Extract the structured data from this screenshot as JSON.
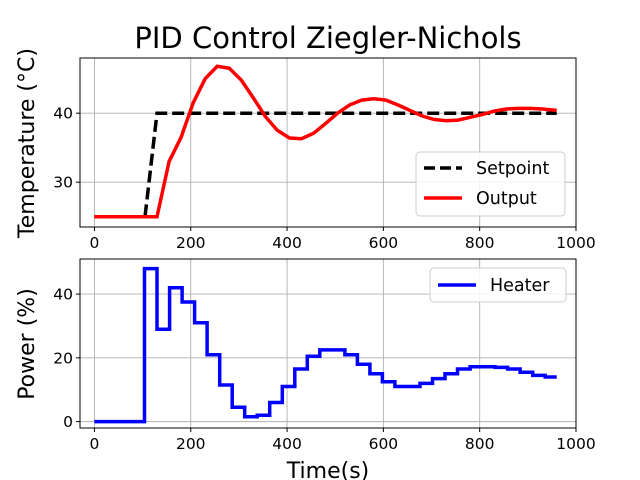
{
  "chart_data": [
    {
      "type": "line",
      "title": "PID Control Ziegler-Nichols",
      "xlabel": "",
      "ylabel": "Temperature (°C)",
      "xlim": [
        -30,
        1000
      ],
      "ylim": [
        23.5,
        48
      ],
      "xticks": [
        0,
        200,
        400,
        600,
        800,
        1000
      ],
      "yticks": [
        30,
        40
      ],
      "grid": true,
      "legend": "lower-right",
      "series": [
        {
          "name": "Setpoint",
          "color": "#000000",
          "style": "dashed",
          "x": [
            0,
            105,
            130,
            960
          ],
          "y": [
            25,
            25,
            40,
            40
          ]
        },
        {
          "name": "Output",
          "color": "#ff0000",
          "style": "solid",
          "x": [
            0,
            130,
            155,
            180,
            205,
            230,
            255,
            280,
            305,
            330,
            355,
            380,
            405,
            430,
            455,
            480,
            505,
            530,
            555,
            580,
            605,
            630,
            655,
            680,
            705,
            730,
            755,
            780,
            805,
            830,
            855,
            880,
            905,
            930,
            960
          ],
          "y": [
            25,
            25,
            33,
            36.5,
            41.5,
            45,
            46.8,
            46.5,
            44.8,
            42.2,
            39.5,
            37.5,
            36.4,
            36.3,
            37.1,
            38.5,
            40,
            41.2,
            41.9,
            42.1,
            41.9,
            41.2,
            40.4,
            39.6,
            39.1,
            38.9,
            39,
            39.4,
            39.8,
            40.3,
            40.6,
            40.7,
            40.7,
            40.6,
            40.4
          ]
        }
      ]
    },
    {
      "type": "line",
      "title": "",
      "xlabel": "Time(s)",
      "ylabel": "Power (%)",
      "xlim": [
        -30,
        1000
      ],
      "ylim": [
        -2,
        51
      ],
      "xticks": [
        0,
        200,
        400,
        600,
        800,
        1000
      ],
      "yticks": [
        0,
        20,
        40
      ],
      "grid": true,
      "legend": "upper-right",
      "series": [
        {
          "name": "Heater",
          "color": "#0000ff",
          "style": "steps-post",
          "x": [
            0,
            104,
            130,
            156,
            182,
            208,
            234,
            260,
            286,
            312,
            338,
            364,
            390,
            416,
            442,
            468,
            494,
            520,
            546,
            572,
            598,
            624,
            650,
            676,
            702,
            728,
            754,
            780,
            806,
            832,
            858,
            884,
            910,
            936,
            960
          ],
          "y": [
            0,
            48,
            29,
            42,
            37.5,
            31,
            21,
            11.5,
            4.5,
            1.5,
            2,
            6,
            11,
            16.5,
            20.5,
            22.5,
            22.5,
            21,
            18,
            15,
            12.5,
            11,
            11,
            12,
            13.5,
            15,
            16.5,
            17.2,
            17.2,
            17,
            16.5,
            15.5,
            14.5,
            14,
            14
          ]
        }
      ]
    }
  ]
}
